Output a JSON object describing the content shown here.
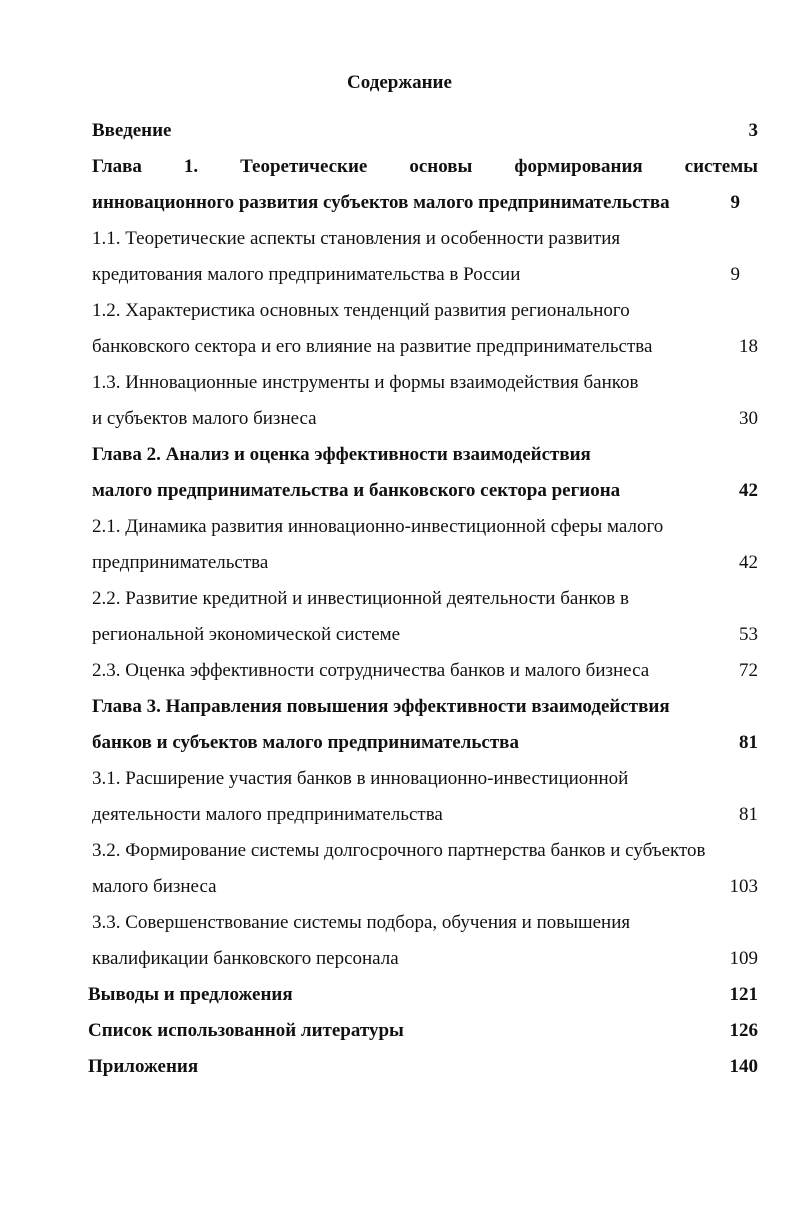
{
  "title": "Содержание",
  "rows": [
    {
      "text": "Введение",
      "page": "3",
      "bold": true
    },
    {
      "text": "Глава 1. Теоретические основы формирования системы",
      "page": "",
      "bold": true,
      "justify": true
    },
    {
      "text": "инновационного развития субъектов малого предпринимательства",
      "page": "9",
      "bold": true,
      "pageOffset": 18
    },
    {
      "text": "1.1. Теоретические аспекты становления и особенности развития",
      "page": "",
      "bold": false
    },
    {
      "text": "кредитования малого предпринимательства в России",
      "page": "9",
      "bold": false,
      "pageOffset": 18
    },
    {
      "text": "1.2. Характеристика основных тенденций развития регионального",
      "page": "",
      "bold": false
    },
    {
      "text": "банковского сектора и его влияние на развитие предпринимательства",
      "page": "18",
      "bold": false
    },
    {
      "text": "1.3. Инновационные инструменты и формы взаимодействия банков",
      "page": "",
      "bold": false
    },
    {
      "text": "и субъектов малого бизнеса",
      "page": "30",
      "bold": false
    },
    {
      "text": "Глава 2. Анализ и оценка эффективности взаимодействия",
      "page": "",
      "bold": true
    },
    {
      "text": "малого предпринимательства и банковского сектора региона",
      "page": "42",
      "bold": true
    },
    {
      "text": "2.1. Динамика развития инновационно-инвестиционной сферы малого",
      "page": "",
      "bold": false
    },
    {
      "text": "предпринимательства",
      "page": "42",
      "bold": false
    },
    {
      "text": "2.2. Развитие кредитной и инвестиционной деятельности банков в",
      "page": "",
      "bold": false
    },
    {
      "text": "региональной экономической системе",
      "page": "53",
      "bold": false
    },
    {
      "text": "2.3. Оценка эффективности сотрудничества банков и малого бизнеса",
      "page": "72",
      "bold": false
    },
    {
      "text": "Глава 3. Направления повышения эффективности взаимодействия",
      "page": "",
      "bold": true
    },
    {
      "text": "банков и субъектов малого предпринимательства",
      "page": "81",
      "bold": true
    },
    {
      "text": "3.1. Расширение участия банков в инновационно-инвестиционной",
      "page": "",
      "bold": false
    },
    {
      "text": "деятельности малого предпринимательства",
      "page": "81",
      "bold": false
    },
    {
      "text": "3.2. Формирование системы долгосрочного партнерства банков и субъектов",
      "page": "",
      "bold": false
    },
    {
      "text": "малого бизнеса",
      "page": "103",
      "bold": false
    },
    {
      "text": "3.3. Совершенствование системы подбора, обучения и повышения",
      "page": "",
      "bold": false
    },
    {
      "text": "квалификации банковского персонала",
      "page": "109",
      "bold": false
    },
    {
      "text": "Выводы и предложения",
      "page": "121",
      "bold": true
    },
    {
      "text": "Список использованной литературы",
      "page": "126",
      "bold": true
    },
    {
      "text": "Приложения",
      "page": "140",
      "bold": true
    }
  ]
}
